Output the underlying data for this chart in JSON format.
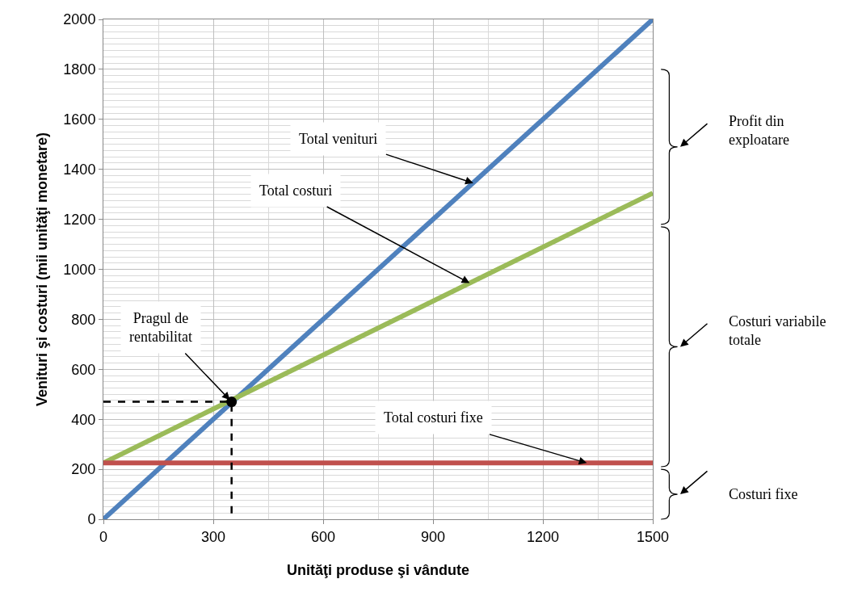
{
  "chart_data": {
    "type": "line",
    "xlabel": "Unităţi produse şi vândute",
    "ylabel": "Venituri şi costuri (mii unităţi monetare)",
    "xlim": [
      0,
      1500
    ],
    "xticks": [
      0,
      300,
      600,
      900,
      1200,
      1500
    ],
    "ylim": [
      0,
      2000
    ],
    "yticks": [
      0,
      200,
      400,
      600,
      800,
      1000,
      1200,
      1400,
      1600,
      1800,
      2000
    ],
    "grid": true,
    "marker": "none",
    "line_style": "solid",
    "series": [
      {
        "color": "#4f81bd",
        "x": [
          0,
          1500
        ],
        "values": [
          0,
          2000
        ]
      },
      {
        "color": "#9bbb59",
        "x": [
          0,
          1500
        ],
        "values": [
          225,
          1305
        ]
      },
      {
        "color": "#c0504d",
        "x": [
          0,
          1500
        ],
        "values": [
          225,
          225
        ]
      },
      {
        "color": "#000000",
        "x": [
          0,
          350,
          350
        ],
        "values": [
          470,
          470,
          0
        ],
        "line_style": "dashed"
      },
      {
        "type": "scatter",
        "color": "#000000",
        "x": [
          350
        ],
        "values": [
          470
        ],
        "marker": "circle"
      }
    ],
    "annotations": [
      {
        "text": "Total venituri",
        "x": 1010,
        "y": 1345
      },
      {
        "text": "Total costuri",
        "x": 1000,
        "y": 945
      },
      {
        "text": "Pragul de rentabilitat",
        "x": 350,
        "y": 470
      },
      {
        "text": "Total costuri fixe",
        "x": 1320,
        "y": 225
      },
      "Profit din exploatare",
      "Costuri variabile totale",
      "Costuri fixe"
    ]
  }
}
